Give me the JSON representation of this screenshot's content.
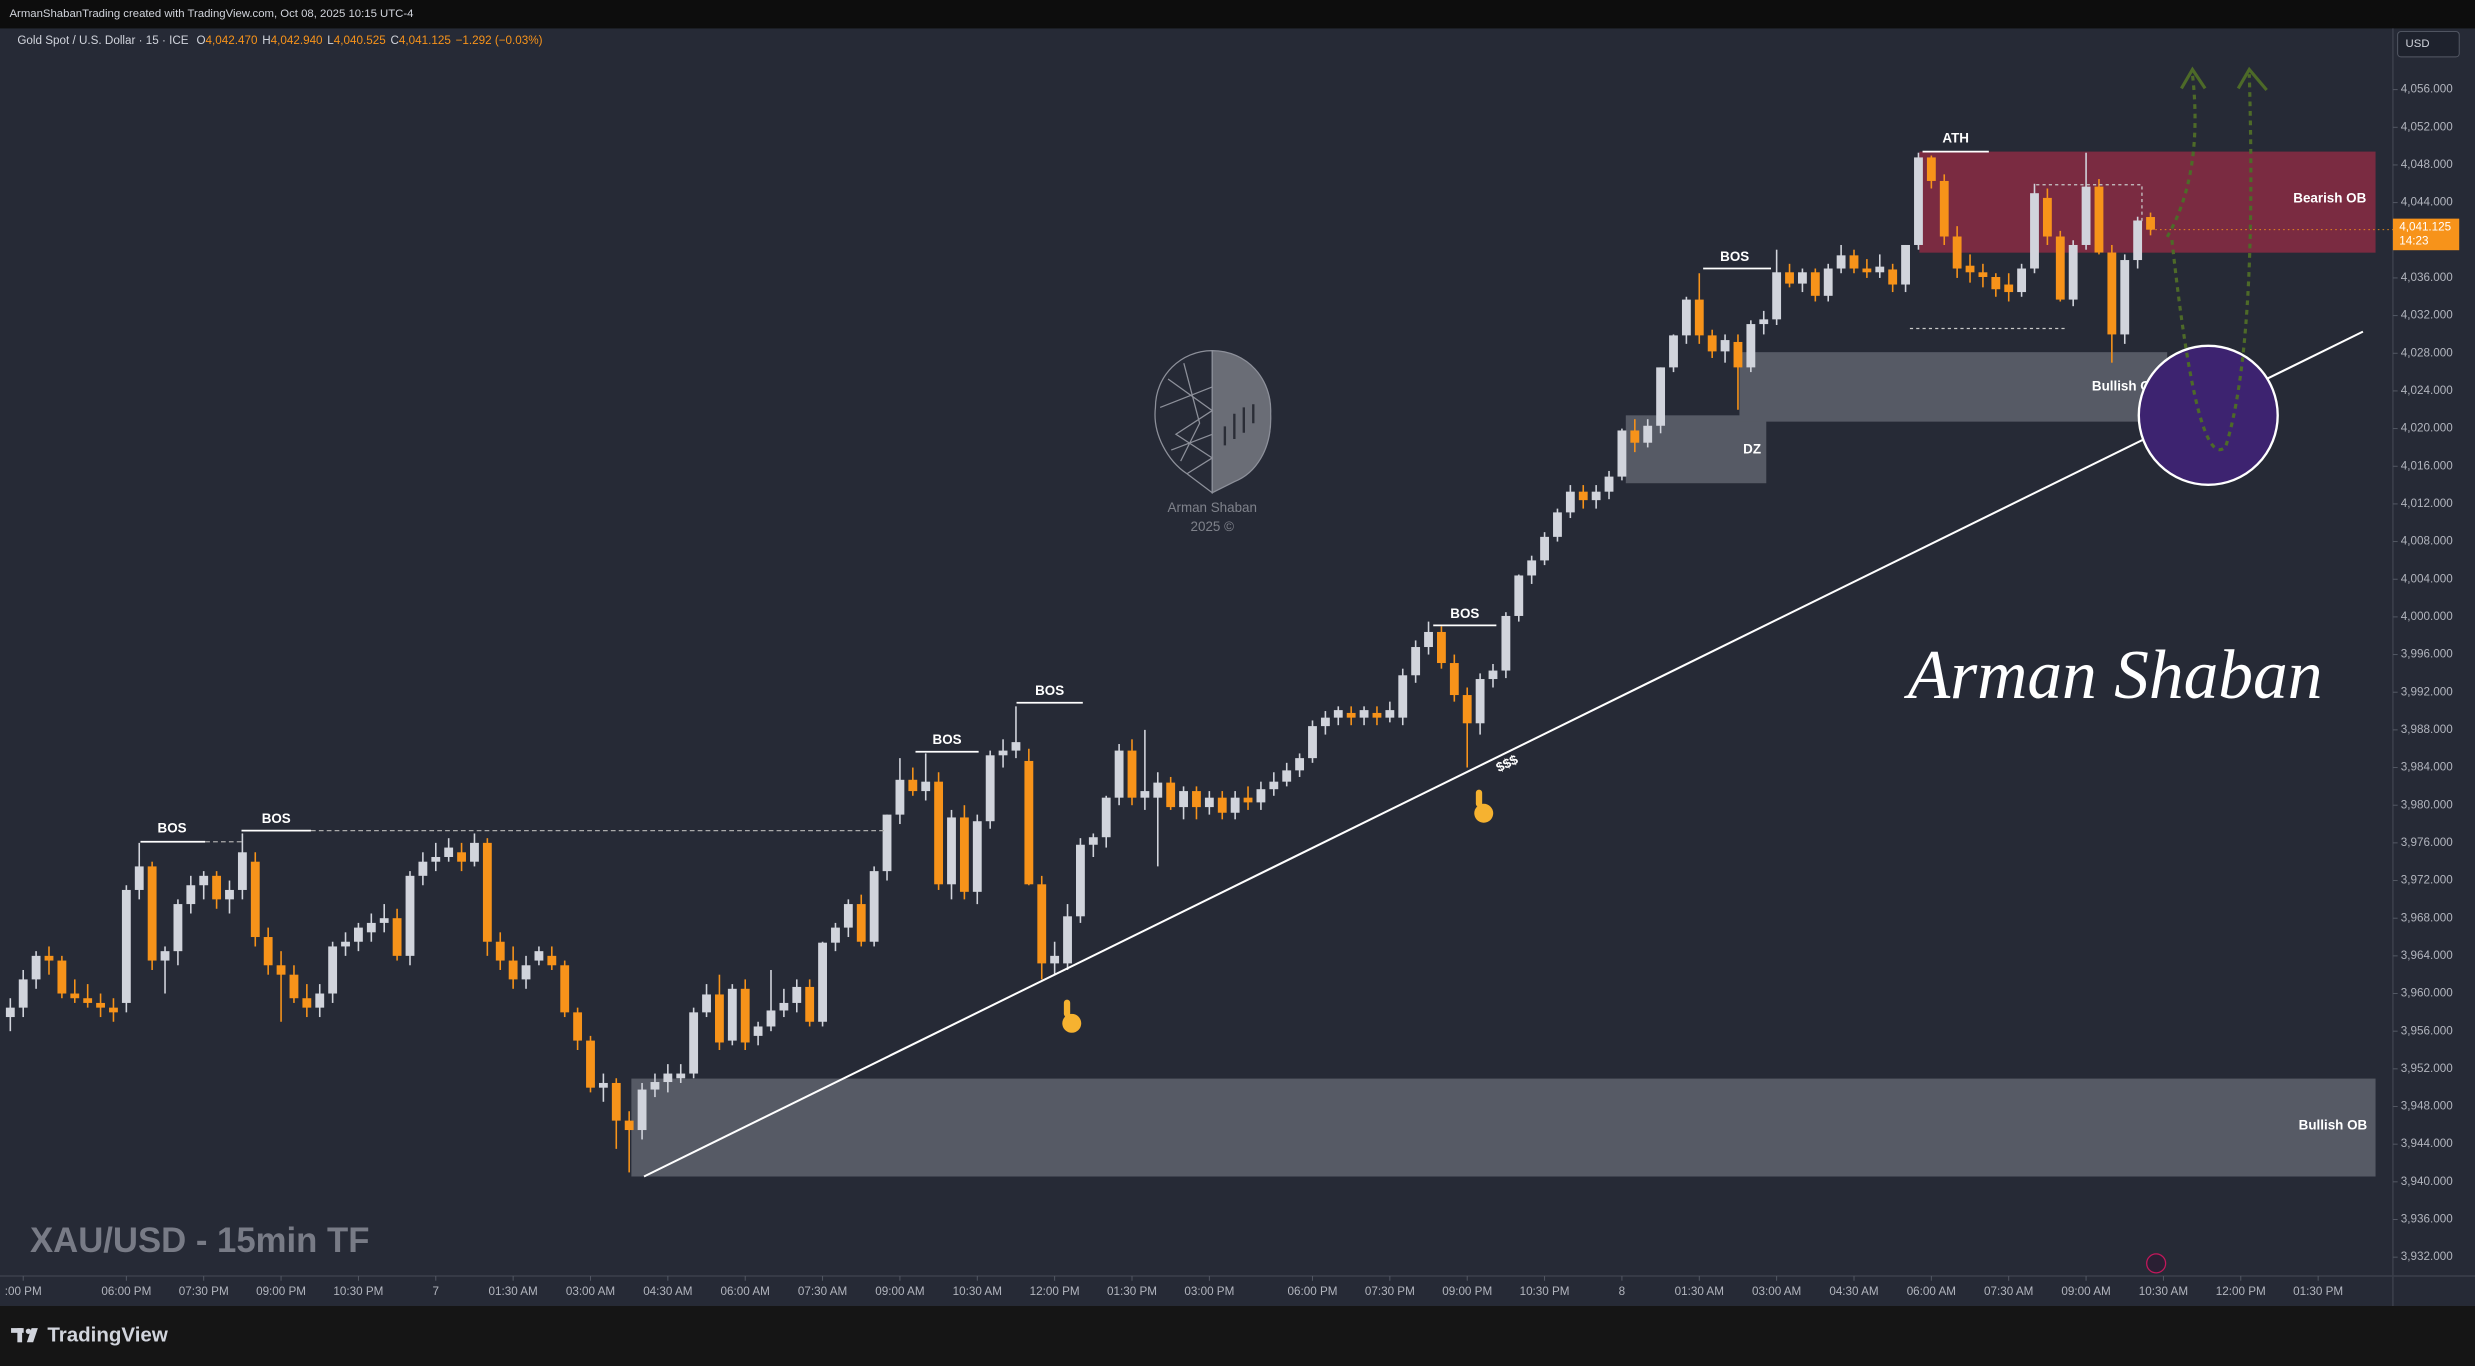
{
  "header": {
    "attribution": "ArmanShabanTrading created with TradingView.com, Oct 08, 2025 10:15 UTC-4"
  },
  "chart_data": {
    "type": "candlestick",
    "title": "XAU/USD - 15min TF",
    "legend": {
      "symbol": "Gold Spot / U.S. Dollar · 15 · ICE",
      "ohlc": [
        {
          "key": "O",
          "value": "4,042.470"
        },
        {
          "key": "H",
          "value": "4,042.940"
        },
        {
          "key": "L",
          "value": "4,040.525"
        },
        {
          "key": "C",
          "value": "4,041.125"
        }
      ],
      "change": "−1.292 (−0.03%)"
    },
    "currency": "USD",
    "last_price": {
      "value": 4041.125,
      "label": "4,041.125"
    },
    "countdown": "14:23",
    "up_color": "#d1d4dc",
    "down_color": "#f7931a",
    "grid": false,
    "ylim": [
      3930,
      4062.5
    ],
    "yticks": [
      {
        "value": 3932,
        "label": "3,932.000"
      },
      {
        "value": 3936,
        "label": "3,936.000"
      },
      {
        "value": 3940,
        "label": "3,940.000"
      },
      {
        "value": 3944,
        "label": "3,944.000"
      },
      {
        "value": 3948,
        "label": "3,948.000"
      },
      {
        "value": 3952,
        "label": "3,952.000"
      },
      {
        "value": 3956,
        "label": "3,956.000"
      },
      {
        "value": 3960,
        "label": "3,960.000"
      },
      {
        "value": 3964,
        "label": "3,964.000"
      },
      {
        "value": 3968,
        "label": "3,968.000"
      },
      {
        "value": 3972,
        "label": "3,972.000"
      },
      {
        "value": 3976,
        "label": "3,976.000"
      },
      {
        "value": 3980,
        "label": "3,980.000"
      },
      {
        "value": 3984,
        "label": "3,984.000"
      },
      {
        "value": 3988,
        "label": "3,988.000"
      },
      {
        "value": 3992,
        "label": "3,992.000"
      },
      {
        "value": 3996,
        "label": "3,996.000"
      },
      {
        "value": 4000,
        "label": "4,000.000"
      },
      {
        "value": 4004,
        "label": "4,004.000"
      },
      {
        "value": 4008,
        "label": "4,008.000"
      },
      {
        "value": 4012,
        "label": "4,012.000"
      },
      {
        "value": 4016,
        "label": "4,016.000"
      },
      {
        "value": 4020,
        "label": "4,020.000"
      },
      {
        "value": 4024,
        "label": "4,024.000"
      },
      {
        "value": 4028,
        "label": "4,028.000"
      },
      {
        "value": 4032,
        "label": "4,032.000"
      },
      {
        "value": 4036,
        "label": "4,036.000"
      },
      {
        "value": 4044,
        "label": "4,044.000"
      },
      {
        "value": 4048,
        "label": "4,048.000"
      },
      {
        "value": 4052,
        "label": "4,052.000"
      },
      {
        "value": 4056,
        "label": "4,056.000"
      }
    ],
    "xlim": [
      -0.8,
      184.8
    ],
    "xticks": [
      {
        "value": 1,
        "label": ":00 PM"
      },
      {
        "value": 9,
        "label": "06:00 PM"
      },
      {
        "value": 15,
        "label": "07:30 PM"
      },
      {
        "value": 21,
        "label": "09:00 PM"
      },
      {
        "value": 27,
        "label": "10:30 PM"
      },
      {
        "value": 33,
        "label": "7"
      },
      {
        "value": 39,
        "label": "01:30 AM"
      },
      {
        "value": 45,
        "label": "03:00 AM"
      },
      {
        "value": 51,
        "label": "04:30 AM"
      },
      {
        "value": 57,
        "label": "06:00 AM"
      },
      {
        "value": 63,
        "label": "07:30 AM"
      },
      {
        "value": 69,
        "label": "09:00 AM"
      },
      {
        "value": 75,
        "label": "10:30 AM"
      },
      {
        "value": 81,
        "label": "12:00 PM"
      },
      {
        "value": 87,
        "label": "01:30 PM"
      },
      {
        "value": 93,
        "label": "03:00 PM"
      },
      {
        "value": 101,
        "label": "06:00 PM"
      },
      {
        "value": 107,
        "label": "07:30 PM"
      },
      {
        "value": 113,
        "label": "09:00 PM"
      },
      {
        "value": 119,
        "label": "10:30 PM"
      },
      {
        "value": 125,
        "label": "8"
      },
      {
        "value": 131,
        "label": "01:30 AM"
      },
      {
        "value": 137,
        "label": "03:00 AM"
      },
      {
        "value": 143,
        "label": "04:30 AM"
      },
      {
        "value": 149,
        "label": "06:00 AM"
      },
      {
        "value": 155,
        "label": "07:30 AM"
      },
      {
        "value": 161,
        "label": "09:00 AM"
      },
      {
        "value": 167,
        "label": "10:30 AM"
      },
      {
        "value": 173,
        "label": "12:00 PM"
      },
      {
        "value": 179,
        "label": "01:30 PM"
      }
    ],
    "candles": [
      [
        3957.5,
        3959.5,
        3956,
        3958.5
      ],
      [
        3958.5,
        3962.5,
        3957.5,
        3961.5
      ],
      [
        3961.5,
        3964.5,
        3960.5,
        3964
      ],
      [
        3964,
        3965,
        3962,
        3963.5
      ],
      [
        3963.5,
        3964,
        3959.5,
        3960
      ],
      [
        3960,
        3961.5,
        3959,
        3959.5
      ],
      [
        3959.5,
        3961,
        3958.5,
        3959
      ],
      [
        3959,
        3960,
        3957.5,
        3958.5
      ],
      [
        3958.5,
        3959.5,
        3957,
        3958
      ],
      [
        3959,
        3971.5,
        3958,
        3971
      ],
      [
        3971,
        3976,
        3970,
        3973.5
      ],
      [
        3973.5,
        3974,
        3962.5,
        3963.5
      ],
      [
        3963.5,
        3965,
        3960,
        3964.5
      ],
      [
        3964.5,
        3970,
        3963,
        3969.5
      ],
      [
        3969.5,
        3972.5,
        3968.5,
        3971.5
      ],
      [
        3971.5,
        3973,
        3970,
        3972.5
      ],
      [
        3972.5,
        3973,
        3969,
        3970
      ],
      [
        3970,
        3972,
        3968.5,
        3971
      ],
      [
        3971,
        3977,
        3970,
        3975
      ],
      [
        3974,
        3975,
        3965,
        3966
      ],
      [
        3966,
        3967,
        3962,
        3963
      ],
      [
        3963,
        3964.5,
        3957,
        3962
      ],
      [
        3962,
        3963,
        3959,
        3959.5
      ],
      [
        3959.5,
        3961,
        3957.5,
        3958.5
      ],
      [
        3958.5,
        3961,
        3957.5,
        3960
      ],
      [
        3960,
        3965.5,
        3959,
        3965
      ],
      [
        3965,
        3966.5,
        3964,
        3965.5
      ],
      [
        3965.5,
        3967.5,
        3964.5,
        3967
      ],
      [
        3966.5,
        3968.5,
        3965.5,
        3967.5
      ],
      [
        3967.5,
        3969.5,
        3966.5,
        3968
      ],
      [
        3968,
        3969,
        3963.5,
        3964
      ],
      [
        3964,
        3973,
        3963,
        3972.5
      ],
      [
        3972.5,
        3975,
        3971.5,
        3974
      ],
      [
        3974,
        3976,
        3973,
        3974.5
      ],
      [
        3974.5,
        3976.5,
        3974,
        3975.5
      ],
      [
        3975,
        3976,
        3973,
        3974
      ],
      [
        3974,
        3977,
        3973.5,
        3976
      ],
      [
        3976,
        3976.5,
        3964,
        3965.5
      ],
      [
        3965.5,
        3966.5,
        3962.5,
        3963.5
      ],
      [
        3963.5,
        3965,
        3960.5,
        3961.5
      ],
      [
        3961.5,
        3964,
        3960.5,
        3963
      ],
      [
        3963.5,
        3965,
        3963,
        3964.5
      ],
      [
        3964,
        3965,
        3962.5,
        3963
      ],
      [
        3963,
        3963.5,
        3957.5,
        3958
      ],
      [
        3958,
        3958.5,
        3954,
        3955
      ],
      [
        3955,
        3955.5,
        3949.5,
        3950
      ],
      [
        3950,
        3951.5,
        3948.5,
        3950.5
      ],
      [
        3950.5,
        3951,
        3943.5,
        3946.5
      ],
      [
        3946.5,
        3947.5,
        3941,
        3945.5
      ],
      [
        3945.5,
        3950.5,
        3944.5,
        3949.8
      ],
      [
        3949.8,
        3951.5,
        3949,
        3950.6
      ],
      [
        3950.6,
        3952.5,
        3949.5,
        3951.5
      ],
      [
        3951,
        3952.5,
        3950.5,
        3951.5
      ],
      [
        3951.5,
        3958.5,
        3951,
        3958
      ],
      [
        3958,
        3961,
        3957.5,
        3959.9
      ],
      [
        3959.9,
        3962,
        3954,
        3954.8
      ],
      [
        3955,
        3961,
        3954.5,
        3960.5
      ],
      [
        3960.5,
        3961.5,
        3954,
        3954.8
      ],
      [
        3955.5,
        3957,
        3954.5,
        3956.5
      ],
      [
        3956.5,
        3962.5,
        3956,
        3958.2
      ],
      [
        3958.2,
        3960.5,
        3957.5,
        3959
      ],
      [
        3959,
        3961.5,
        3958,
        3960.7
      ],
      [
        3960.7,
        3961.5,
        3956.5,
        3957
      ],
      [
        3957,
        3965.5,
        3956.5,
        3965.4
      ],
      [
        3965.4,
        3967.5,
        3964.5,
        3967
      ],
      [
        3967,
        3970,
        3966,
        3969.5
      ],
      [
        3969.5,
        3970.5,
        3965,
        3965.5
      ],
      [
        3965.5,
        3973.5,
        3965,
        3973
      ],
      [
        3973,
        3979,
        3972,
        3979
      ],
      [
        3979,
        3985,
        3978,
        3982.7
      ],
      [
        3982.7,
        3984,
        3981,
        3981.5
      ],
      [
        3981.5,
        3985.5,
        3980.5,
        3982.5
      ],
      [
        3982.5,
        3983.5,
        3971,
        3971.6
      ],
      [
        3971.6,
        3979.5,
        3970,
        3978.7
      ],
      [
        3978.7,
        3980,
        3970,
        3970.8
      ],
      [
        3970.8,
        3979,
        3969.5,
        3978.3
      ],
      [
        3978.3,
        3985.8,
        3977.5,
        3985.3
      ],
      [
        3985.3,
        3987,
        3984,
        3985.8
      ],
      [
        3985.8,
        3990.5,
        3985,
        3986.7
      ],
      [
        3984.7,
        3986,
        3971.5,
        3971.6
      ],
      [
        3971.6,
        3972.5,
        3961.5,
        3963.2
      ],
      [
        3963.2,
        3965.5,
        3962,
        3964
      ],
      [
        3963.2,
        3969.5,
        3962.5,
        3968.2
      ],
      [
        3968.2,
        3976.5,
        3967.5,
        3975.8
      ],
      [
        3975.8,
        3977,
        3974.5,
        3976.6
      ],
      [
        3976.6,
        3981,
        3975.5,
        3980.8
      ],
      [
        3980.8,
        3986.5,
        3980,
        3985.8
      ],
      [
        3985.8,
        3987,
        3980,
        3980.8
      ],
      [
        3980.8,
        3988,
        3979.5,
        3981.5
      ],
      [
        3980.8,
        3983.5,
        3973.5,
        3982.4
      ],
      [
        3982.4,
        3983,
        3979.5,
        3979.8
      ],
      [
        3979.8,
        3982,
        3978.5,
        3981.5
      ],
      [
        3981.5,
        3982,
        3978.5,
        3979.8
      ],
      [
        3979.8,
        3981.5,
        3979,
        3980.8
      ],
      [
        3980.8,
        3981.5,
        3978.5,
        3979.2
      ],
      [
        3979.2,
        3981.5,
        3978.5,
        3980.8
      ],
      [
        3980.8,
        3982,
        3979.5,
        3980.3
      ],
      [
        3980.3,
        3982.5,
        3979.5,
        3981.7
      ],
      [
        3981.7,
        3983.5,
        3981,
        3982.5
      ],
      [
        3982.5,
        3984.5,
        3982,
        3983.7
      ],
      [
        3983.7,
        3985.5,
        3983,
        3985
      ],
      [
        3985,
        3989,
        3984.5,
        3988.4
      ],
      [
        3988.4,
        3990,
        3987.5,
        3989.3
      ],
      [
        3989.3,
        3990.5,
        3988.5,
        3990.1
      ],
      [
        3989.8,
        3990.5,
        3988.5,
        3989.3
      ],
      [
        3989.3,
        3990.5,
        3988.5,
        3990.1
      ],
      [
        3989.8,
        3990.5,
        3988.5,
        3989.3
      ],
      [
        3989.3,
        3991,
        3988.8,
        3990.1
      ],
      [
        3989.3,
        3994.5,
        3988.5,
        3993.8
      ],
      [
        3993.8,
        3997.5,
        3993,
        3996.8
      ],
      [
        3996.8,
        3999.5,
        3996,
        3998.4
      ],
      [
        3998.4,
        3999,
        3994.5,
        3995.1
      ],
      [
        3995.1,
        3996,
        3991,
        3991.7
      ],
      [
        3991.7,
        3992.5,
        3984,
        3988.7
      ],
      [
        3988.7,
        3994,
        3987.5,
        3993.4
      ],
      [
        3993.4,
        3995,
        3992.5,
        3994.3
      ],
      [
        3994.3,
        4000.5,
        3993.5,
        4000.1
      ],
      [
        4000.1,
        4004.5,
        3999.5,
        4004.4
      ],
      [
        4004.4,
        4006.5,
        4003.5,
        4006
      ],
      [
        4006,
        4009,
        4005.5,
        4008.5
      ],
      [
        4008.5,
        4011.5,
        4008,
        4011.1
      ],
      [
        4011.1,
        4014,
        4010.5,
        4013.3
      ],
      [
        4013.3,
        4014,
        4011.5,
        4012.4
      ],
      [
        4012.4,
        4014,
        4011.5,
        4013.3
      ],
      [
        4013.3,
        4015.5,
        4012.5,
        4014.9
      ],
      [
        4014.9,
        4020,
        4014.5,
        4019.8
      ],
      [
        4019.8,
        4021,
        4017.5,
        4018.5
      ],
      [
        4018.5,
        4021,
        4018,
        4020.3
      ],
      [
        4020.3,
        4026.5,
        4019.5,
        4026.5
      ],
      [
        4026.5,
        4030,
        4026,
        4029.9
      ],
      [
        4029.9,
        4034,
        4029,
        4033.7
      ],
      [
        4033.7,
        4036.5,
        4029,
        4029.9
      ],
      [
        4029.9,
        4030.5,
        4027.5,
        4028.2
      ],
      [
        4028.2,
        4030,
        4027,
        4029.4
      ],
      [
        4029.2,
        4030,
        4022,
        4026.5
      ],
      [
        4026.5,
        4031.5,
        4026,
        4031.1
      ],
      [
        4031.1,
        4032.5,
        4030,
        4031.6
      ],
      [
        4031.6,
        4039,
        4031,
        4036.6
      ],
      [
        4036.6,
        4037.5,
        4035,
        4035.4
      ],
      [
        4035.4,
        4037,
        4034.5,
        4036.6
      ],
      [
        4036.6,
        4037,
        4033.5,
        4034.1
      ],
      [
        4034.1,
        4037.5,
        4033.5,
        4037
      ],
      [
        4037,
        4039.5,
        4036.5,
        4038.4
      ],
      [
        4038.4,
        4039,
        4036.5,
        4037
      ],
      [
        4037,
        4038,
        4036,
        4036.6
      ],
      [
        4036.6,
        4038.5,
        4036,
        4037.2
      ],
      [
        4036.9,
        4037.5,
        4034.5,
        4035.3
      ],
      [
        4035.3,
        4039.5,
        4034.5,
        4039.5
      ],
      [
        4039.5,
        4049.3,
        4039,
        4048.8
      ],
      [
        4048.8,
        4049,
        4045.5,
        4046.3
      ],
      [
        4046.3,
        4047,
        4039.5,
        4040.4
      ],
      [
        4040.4,
        4041.5,
        4036,
        4037
      ],
      [
        4037.3,
        4038.5,
        4035.5,
        4036.6
      ],
      [
        4036.6,
        4037.5,
        4035,
        4036.1
      ],
      [
        4036.1,
        4036.5,
        4034,
        4034.8
      ],
      [
        4035.3,
        4036.5,
        4033.5,
        4034.5
      ],
      [
        4034.5,
        4037.5,
        4034,
        4037
      ],
      [
        4037,
        4046,
        4036.5,
        4045
      ],
      [
        4044.5,
        4045.5,
        4039.5,
        4040.4
      ],
      [
        4040.4,
        4041,
        4033.5,
        4033.7
      ],
      [
        4033.7,
        4040,
        4033,
        4039.5
      ],
      [
        4039.5,
        4049.3,
        4039,
        4045.7
      ],
      [
        4045.7,
        4046.5,
        4038.5,
        4038.7
      ],
      [
        4038.7,
        4039.5,
        4027,
        4030
      ],
      [
        4030,
        4038.5,
        4029,
        4037.9
      ],
      [
        4037.9,
        4042.5,
        4037,
        4042.1
      ],
      [
        4042.47,
        4042.94,
        4040.525,
        4041.125
      ]
    ],
    "annotations": [
      "BOS",
      "BOS",
      "BOS",
      "BOS",
      "BOS",
      "BOS",
      "ATH",
      "Bearish OB",
      "Bullish OB",
      "DZ",
      "Bullish OB",
      "$$$"
    ],
    "signature": "Arman Shaban",
    "watermark": [
      "Arman Shaban",
      "2025 ©"
    ]
  },
  "footer": {
    "brand": "TradingView"
  }
}
